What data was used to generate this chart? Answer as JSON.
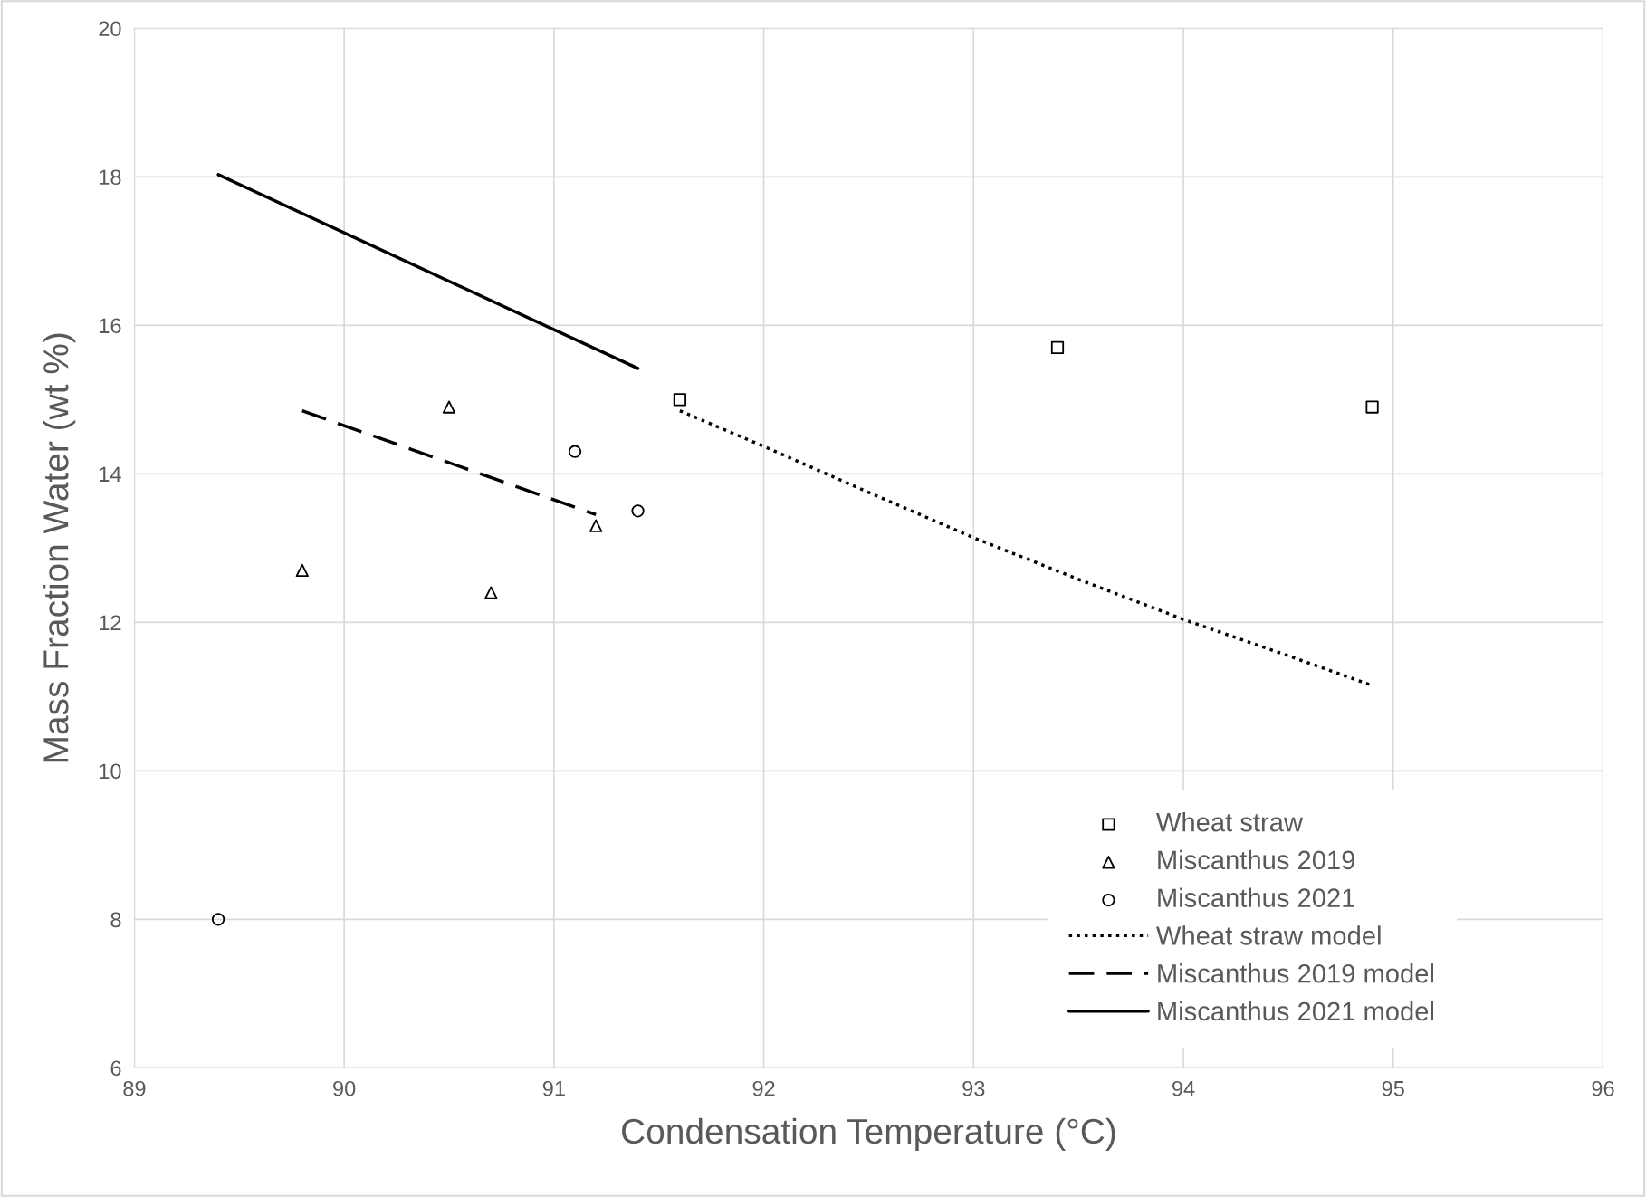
{
  "chart_data": {
    "type": "scatter",
    "xlabel": "Condensation Temperature (°C)",
    "ylabel": "Mass Fraction Water (wt %)",
    "xlim": [
      89,
      96
    ],
    "xticks": [
      89,
      90,
      91,
      92,
      93,
      94,
      95,
      96
    ],
    "ylim": [
      6,
      20
    ],
    "yticks": [
      6,
      8,
      10,
      12,
      14,
      16,
      18,
      20
    ],
    "grid": true,
    "legend": "bottom right",
    "series": [
      {
        "name": "Wheat straw",
        "marker": "square",
        "color": "#000000",
        "x": [
          91.6,
          93.4,
          94.9
        ],
        "values": [
          15.0,
          15.7,
          14.9
        ]
      },
      {
        "name": "Miscanthus 2019",
        "marker": "triangle",
        "color": "#000000",
        "x": [
          89.8,
          90.5,
          90.7,
          91.2
        ],
        "values": [
          12.7,
          14.9,
          12.4,
          13.3
        ]
      },
      {
        "name": "Miscanthus 2021",
        "marker": "circle",
        "color": "#000000",
        "x": [
          89.4,
          91.1,
          91.4
        ],
        "values": [
          8.0,
          14.3,
          13.5
        ]
      },
      {
        "name": "Wheat straw model",
        "type": "line",
        "line_style": "dotted",
        "color": "#000000",
        "x": [
          91.6,
          92.0,
          92.5,
          93.0,
          93.5,
          94.0,
          94.5,
          94.9
        ],
        "values": [
          14.85,
          14.37,
          13.75,
          13.14,
          12.58,
          12.04,
          11.55,
          11.15
        ]
      },
      {
        "name": "Miscanthus 2019 model",
        "type": "line",
        "line_style": "dashed",
        "color": "#000000",
        "x": [
          89.8,
          91.2
        ],
        "values": [
          14.85,
          13.45
        ]
      },
      {
        "name": "Miscanthus 2021 model",
        "type": "line",
        "line_style": "solid",
        "color": "#000000",
        "x": [
          89.4,
          91.4
        ],
        "values": [
          18.03,
          15.42
        ]
      }
    ]
  }
}
